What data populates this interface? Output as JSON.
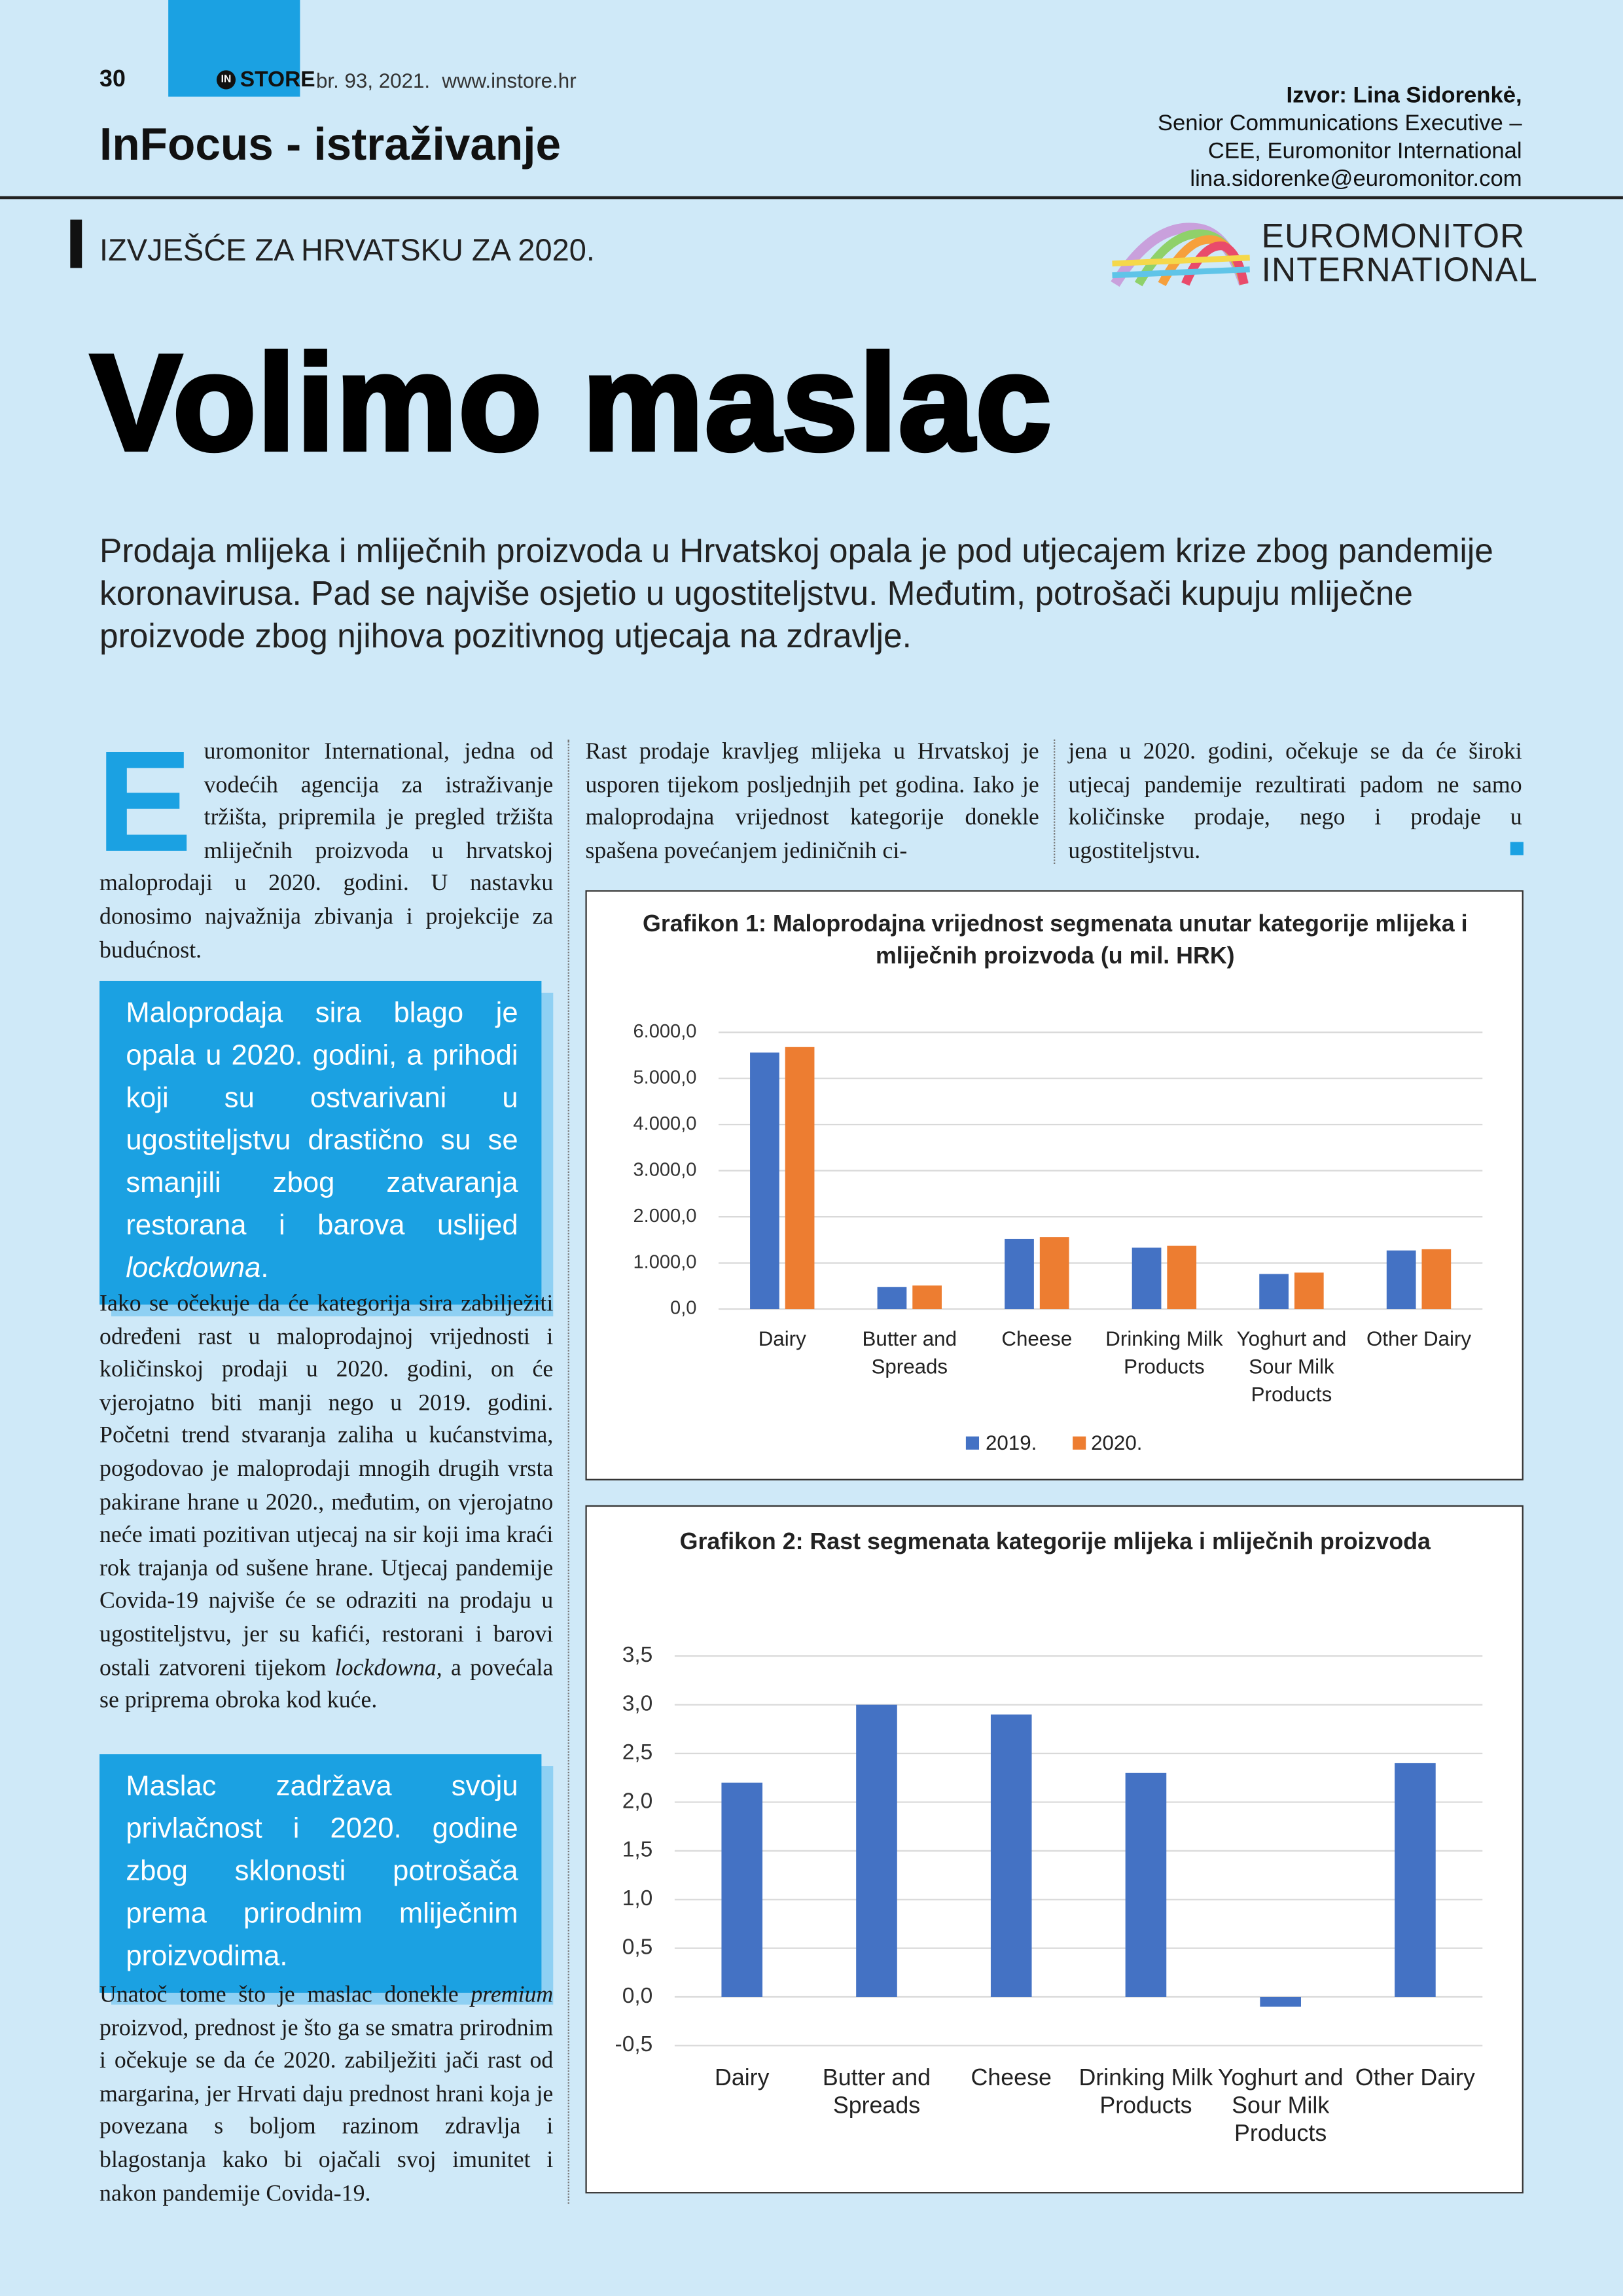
{
  "header": {
    "page_number": "30",
    "logo_mark": "IN",
    "brand": "STORE",
    "issue": "br. 93, 2021.",
    "website": "www.instore.hr",
    "section": "InFocus - istraživanje",
    "source_lines": [
      "Izvor: Lina Sidorenkė,",
      "Senior Communications Executive –",
      "CEE, Euromonitor International",
      "lina.sidorenke@euromonitor.com"
    ],
    "report": "IZVJEŠĆE ZA HRVATSKU ZA 2020.",
    "logo": [
      "EUROMONITOR",
      "INTERNATIONAL"
    ]
  },
  "title": "Volimo maslac",
  "lead": "Prodaja mlijeka i mliječnih proizvoda u Hrvatskoj opala je pod utjecajem krize zbog pandemije koronavirusa. Pad se najviše osjetio u ugostiteljstvu. Međutim, potrošači kupuju mliječne proizvode zbog njihova pozitivnog utjecaja na zdravlje.",
  "column1": {
    "drop_cap": "E",
    "paragraph1": "uromonitor International, jedna od vodećih agencija za istraživanje tržišta, pripremila je pregled tržišta mliječnih proizvoda u hrvatskoj maloprodaji u 2020. godini. U nastavku donosimo najvažnija zbivanja i projekcije za budućnost.",
    "paragraph2": [
      "Iako se očekuje da će kategorija sira zabilježiti određeni rast u maloprodajnoj vrijednosti i količinskoj prodaji u 2020. godini, on će vjerojatno biti manji nego u 2019. godini. Početni trend stvaranja zaliha u kućanstvima, pogodovao je maloprodaji mnogih drugih vrsta pakirane hrane u 2020., međutim, on vjerojatno neće imati pozitivan utjecaj na sir koji ima kraći rok trajanja od sušene hrane. Utjecaj pandemije Covida-19 najviše će se odraziti na prodaju u ugostiteljstvu, jer su kafići, restorani i barovi ostali zatvoreni tijekom ",
      "lockdowna",
      ", a povećala se priprema obroka kod kuće."
    ],
    "paragraph3": [
      "Unatoč tome što je maslac donekle ",
      "premium",
      " proizvod, prednost je što ga se smatra prirodnim i očekuje se da će 2020. zabilježiti jači rast od margarina, jer Hrvati daju prednost hrani koja je povezana s boljom razinom zdravlja i blagostanja kako bi ojačali svoj imunitet i nakon pandemije Covida-19."
    ]
  },
  "quotes": [
    [
      "Maloprodaja sira blago je opala u 2020. godini, a prihodi koji su ostvarivani u ugostiteljstvu drastično su se smanjili zbog zatvaranja restorana i barova uslijed ",
      "lockdowna",
      "."
    ],
    [
      "Maslac zadržava svoju privlačnost i 2020. godine zbog sklonosti potrošača prema prirodnim mliječnim proizvodima."
    ]
  ],
  "column2": "Rast prodaje kravljeg mlijeka u Hrvatskoj je usporen tijekom posljednjih pet godina. Iako je maloprodajna vrijednost kategorije donekle spašena povećanjem jediničnih ci-",
  "column3": "jena u 2020. godini, očekuje se da će široki utjecaj pandemije rezultirati padom ne samo količinske prodaje, nego i prodaje u ugostiteljstvu.",
  "chart_data": [
    {
      "type": "bar",
      "title": "Grafikon 1: Maloprodajna vrijednost segmenata unutar kategorije mlijeka i mliječnih proizvoda (u mil. HRK)",
      "categories": [
        "Dairy",
        "Butter and Spreads",
        "Cheese",
        "Drinking Milk Products",
        "Yoghurt and Sour Milk Products",
        "Other Dairy"
      ],
      "series": [
        {
          "name": "2019.",
          "color": "#4472c4",
          "values": [
            5560,
            480,
            1520,
            1330,
            760,
            1270
          ]
        },
        {
          "name": "2020.",
          "color": "#ed7d31",
          "values": [
            5680,
            510,
            1560,
            1370,
            790,
            1300
          ]
        }
      ],
      "ylim": [
        0,
        6000
      ],
      "yticks": [
        {
          "value": 0,
          "label": "0,0"
        },
        {
          "value": 1000,
          "label": "1.000,0"
        },
        {
          "value": 2000,
          "label": "2.000,0"
        },
        {
          "value": 3000,
          "label": "3.000,0"
        },
        {
          "value": 4000,
          "label": "4.000,0"
        },
        {
          "value": 5000,
          "label": "5.000,0"
        },
        {
          "value": 6000,
          "label": "6.000,0"
        }
      ],
      "grid": true,
      "legend": "bottom"
    },
    {
      "type": "bar",
      "title": "Grafikon 2: Rast segmenata kategorije mlijeka i mliječnih proizvoda",
      "categories": [
        "Dairy",
        "Butter and Spreads",
        "Cheese",
        "Drinking Milk Products",
        "Yoghurt and Sour Milk Products",
        "Other Dairy"
      ],
      "values": [
        2.2,
        3.0,
        2.9,
        2.3,
        -0.1,
        2.4
      ],
      "color": "#4472c4",
      "ylim": [
        -0.5,
        3.5
      ],
      "yticks": [
        {
          "value": -0.5,
          "label": "-0,5"
        },
        {
          "value": 0,
          "label": "0,0"
        },
        {
          "value": 0.5,
          "label": "0,5"
        },
        {
          "value": 1,
          "label": "1,0"
        },
        {
          "value": 1.5,
          "label": "1,5"
        },
        {
          "value": 2,
          "label": "2,0"
        },
        {
          "value": 2.5,
          "label": "2,5"
        },
        {
          "value": 3,
          "label": "3,0"
        },
        {
          "value": 3.5,
          "label": "3,5"
        }
      ],
      "grid": true
    }
  ]
}
